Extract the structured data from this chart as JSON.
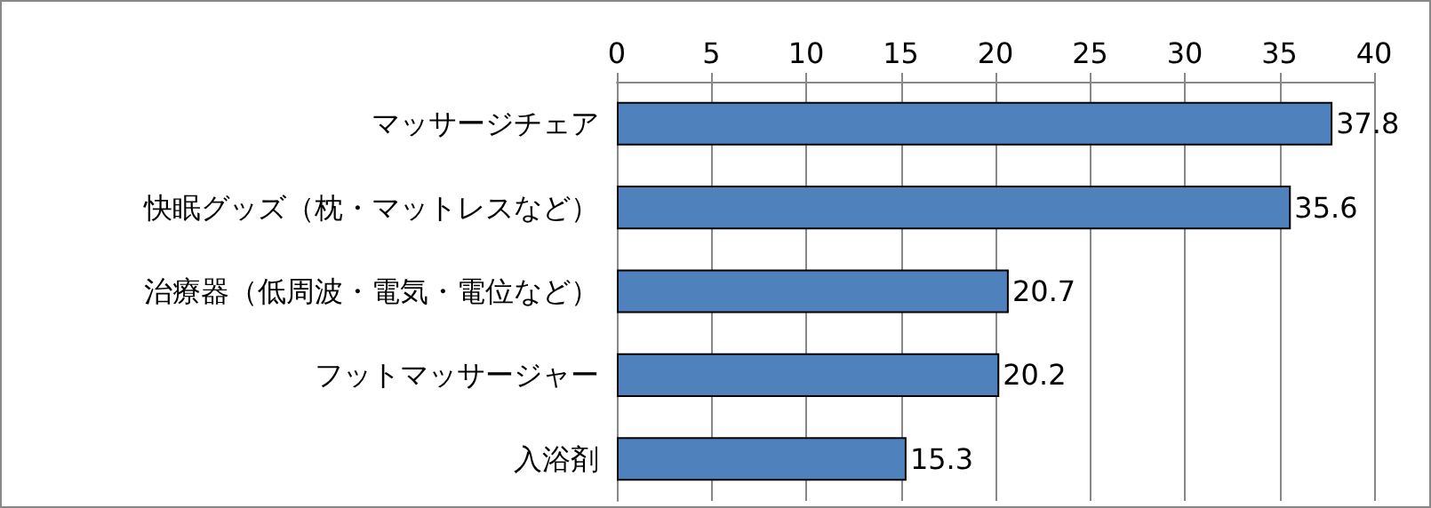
{
  "chart_data": {
    "type": "bar",
    "orientation": "horizontal",
    "categories": [
      "マッサージチェア",
      "快眠グッズ（枕・マットレスなど）",
      "治療器（低周波・電気・電位など）",
      "フットマッサージャー",
      "入浴剤"
    ],
    "values": [
      37.8,
      35.6,
      20.7,
      20.2,
      15.3
    ],
    "color": "#4f81bd",
    "xlim": [
      0,
      40
    ],
    "xticks": [
      0,
      5,
      10,
      15,
      20,
      25,
      30,
      35,
      40
    ],
    "grid": "x",
    "data_labels": true
  }
}
